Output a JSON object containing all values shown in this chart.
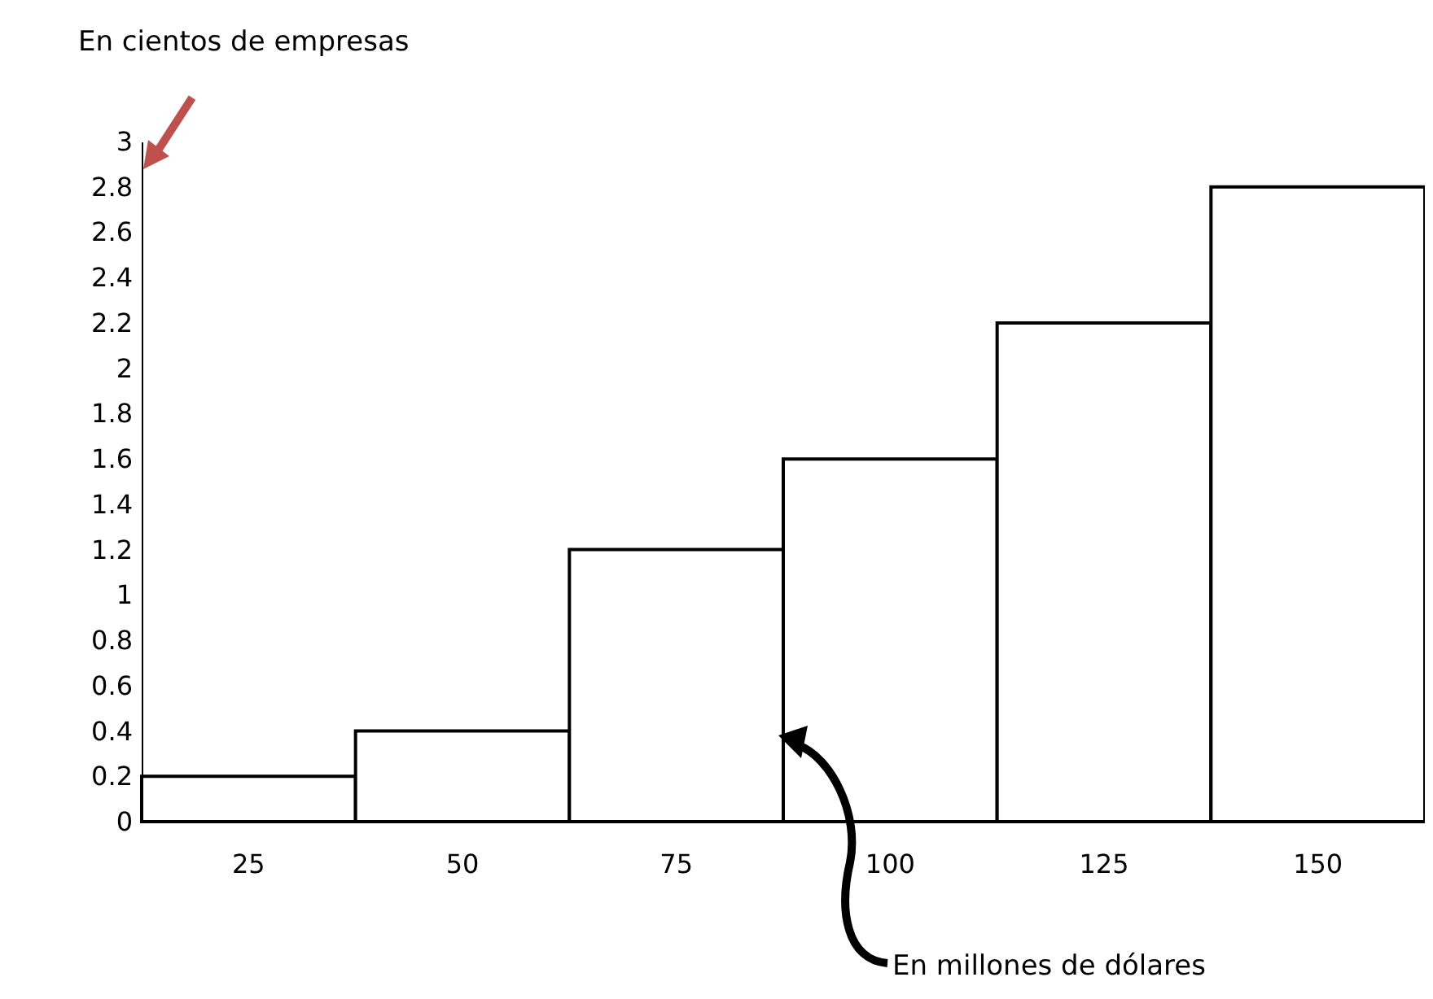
{
  "chart_data": {
    "type": "bar",
    "categories": [
      "25",
      "50",
      "75",
      "100",
      "125",
      "150"
    ],
    "values": [
      0.2,
      0.4,
      1.2,
      1.6,
      2.2,
      2.8
    ],
    "color": "#ffffff",
    "ylim": [
      0,
      3
    ],
    "yticks": [
      0,
      0.2,
      0.4,
      0.6,
      0.8,
      1,
      1.2,
      1.4,
      1.6,
      1.8,
      2,
      2.2,
      2.4,
      2.6,
      2.8,
      3
    ],
    "annotations": [
      "En cientos de empresas",
      "En millones de dólares"
    ]
  }
}
